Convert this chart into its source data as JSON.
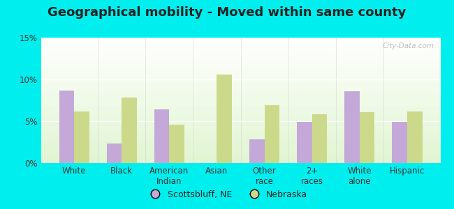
{
  "title": "Geographical mobility - Moved within same county",
  "categories": [
    "White",
    "Black",
    "American\nIndian",
    "Asian",
    "Other\nrace",
    "2+\nraces",
    "White\nalone",
    "Hispanic"
  ],
  "scottsbluff": [
    8.7,
    2.3,
    6.4,
    0.0,
    2.8,
    4.9,
    8.6,
    4.9
  ],
  "nebraska": [
    6.2,
    7.8,
    4.6,
    10.6,
    6.9,
    5.8,
    6.1,
    6.2
  ],
  "bar_color_scottsbluff": "#c4a8d8",
  "bar_color_nebraska": "#ccd98a",
  "outer_bg": "#00eeee",
  "ylim": [
    0,
    15
  ],
  "yticks": [
    0,
    5,
    10,
    15
  ],
  "ytick_labels": [
    "0%",
    "5%",
    "10%",
    "15%"
  ],
  "legend_labels": [
    "Scottsbluff, NE",
    "Nebraska"
  ],
  "watermark": "City-Data.com",
  "title_fontsize": 13,
  "tick_fontsize": 8.5
}
